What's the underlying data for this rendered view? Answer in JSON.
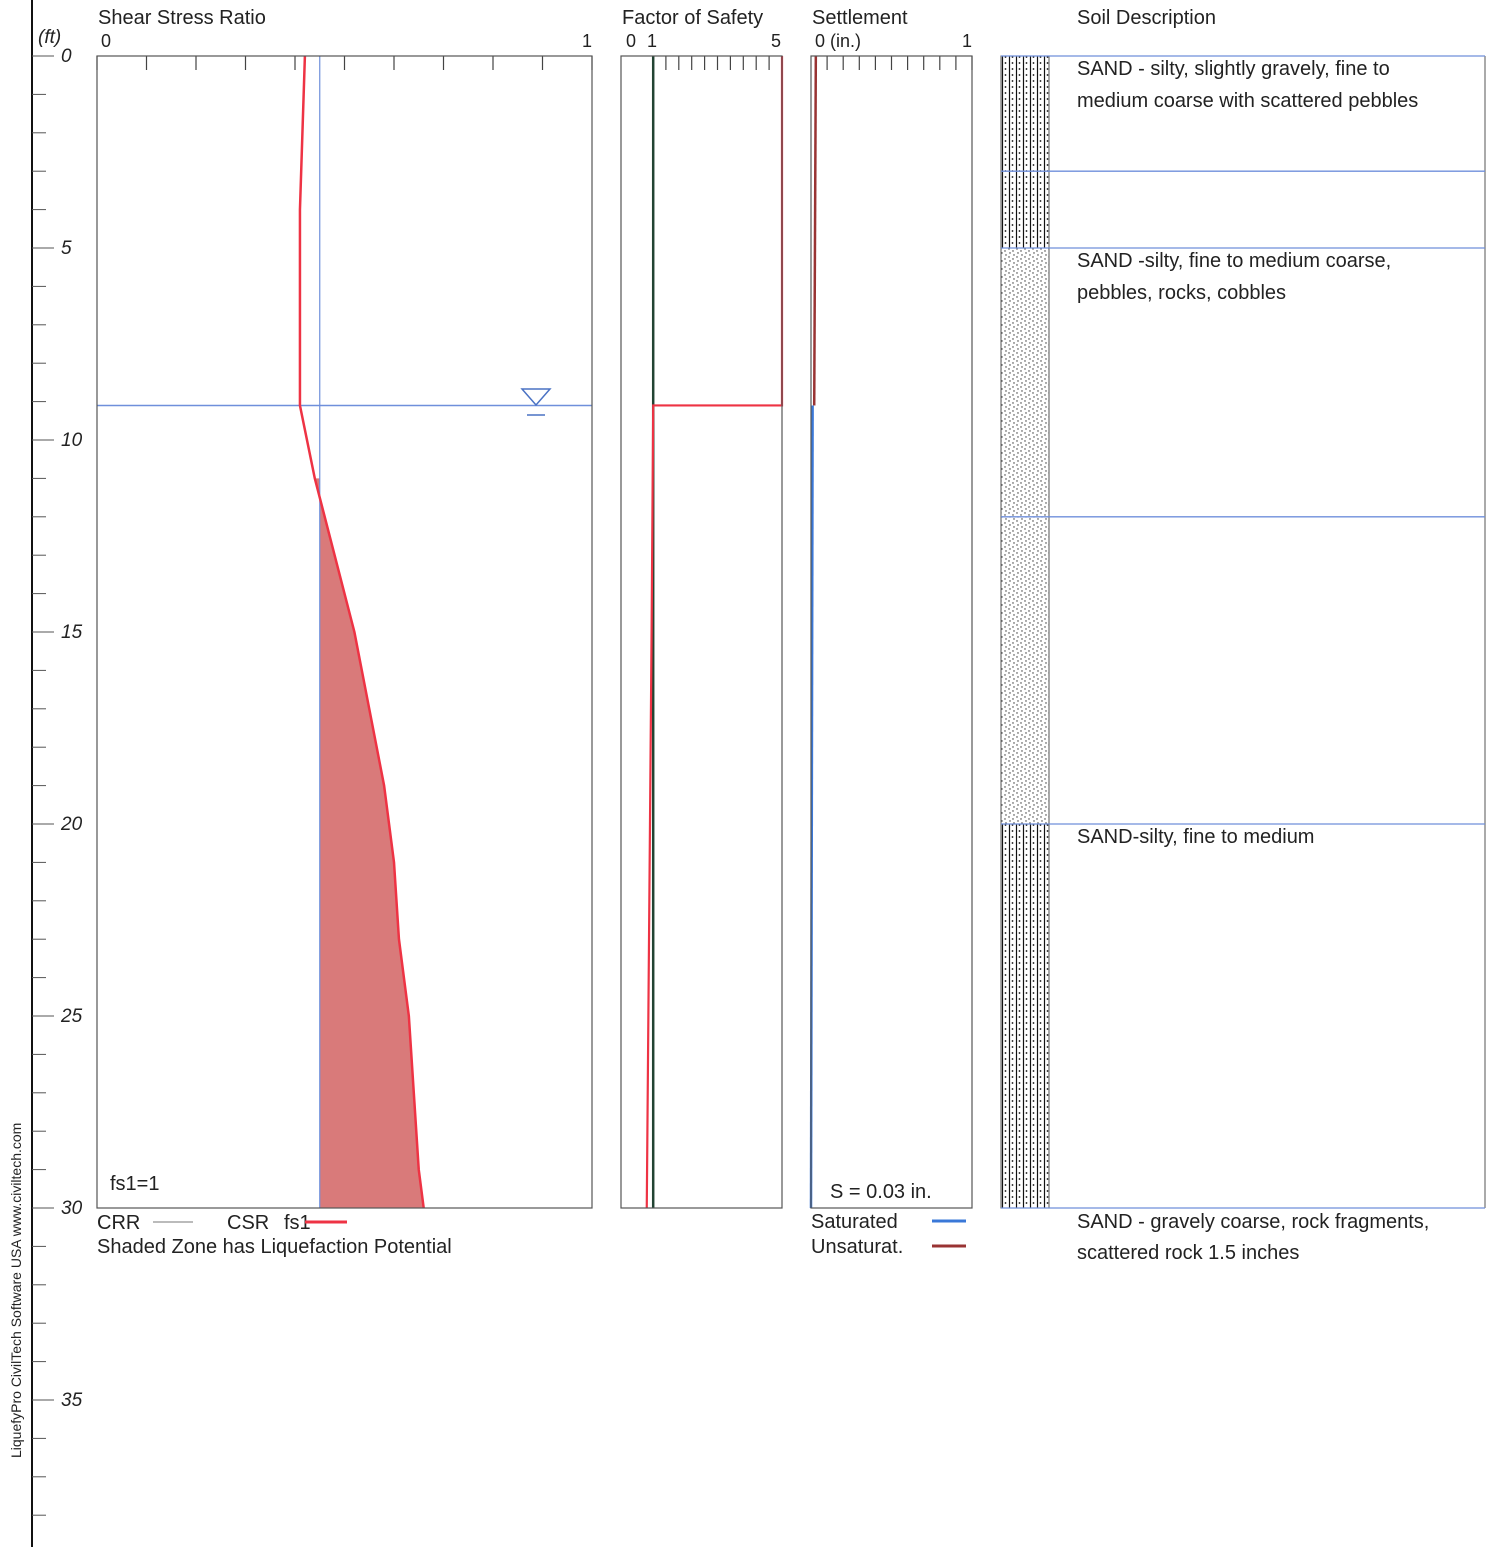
{
  "depth_axis": {
    "unit_label": "(ft)",
    "tick_labels": [
      "0",
      "5",
      "10",
      "15",
      "20",
      "25",
      "30",
      "35"
    ],
    "range": [
      0,
      39
    ],
    "major_step": 5,
    "minor_step": 1
  },
  "side_text": "LiquefyPro CivilTech Software USA www.civiltech.com",
  "colors": {
    "csr": "#ee3344",
    "crr": "#bbbbbb",
    "liquefaction_fill": "#d97a7a",
    "water_line": "#6f8fdb",
    "saturated": "#3a78d8",
    "unsaturated": "#993333",
    "fs1_line": "#224433",
    "layer_line": "#6f8fdb"
  },
  "chart_data": [
    {
      "type": "line",
      "title": "Shear Stress Ratio",
      "x_tick_labels": [
        "0",
        "1"
      ],
      "xlim": [
        0,
        1
      ],
      "ylim": [
        0,
        30
      ],
      "water_table_depth": 9.1,
      "series": [
        {
          "name": "CRR",
          "points": [
            [
              0.45,
              0
            ],
            [
              0.45,
              30
            ]
          ]
        },
        {
          "name": "CSR fs1",
          "points": [
            [
              0.42,
              0
            ],
            [
              0.41,
              4
            ],
            [
              0.41,
              9.1
            ],
            [
              0.44,
              11
            ],
            [
              0.48,
              13
            ],
            [
              0.52,
              15
            ],
            [
              0.55,
              17
            ],
            [
              0.58,
              19
            ],
            [
              0.6,
              21
            ],
            [
              0.61,
              23
            ],
            [
              0.63,
              25
            ],
            [
              0.64,
              27
            ],
            [
              0.65,
              29
            ],
            [
              0.66,
              30
            ]
          ]
        }
      ],
      "shaded_region": {
        "from_depth": 11,
        "to_depth": 30
      },
      "annotation": "fs1=1",
      "legend": {
        "crr": "CRR",
        "csr_prefix": "CSR",
        "csr_series": "fs1"
      },
      "note": "Shaded Zone has Liquefaction Potential"
    },
    {
      "type": "line",
      "title": "Factor of Safety",
      "x_tick_labels": [
        "0",
        "1",
        "5"
      ],
      "xlim": [
        0,
        5
      ],
      "ylim": [
        0,
        30
      ],
      "series": [
        {
          "name": "fs1",
          "points": [
            [
              5,
              0
            ],
            [
              5,
              9.1
            ],
            [
              1.0,
              9.1
            ],
            [
              0.95,
              15
            ],
            [
              0.9,
              20
            ],
            [
              0.85,
              25
            ],
            [
              0.8,
              30
            ]
          ]
        },
        {
          "name": "FS = 1",
          "points": [
            [
              1,
              0
            ],
            [
              1,
              30
            ]
          ]
        }
      ]
    },
    {
      "type": "line",
      "title": "Settlement",
      "x_tick_labels": [
        "0 (in.)",
        "1"
      ],
      "xlim": [
        0,
        1
      ],
      "ylim": [
        0,
        30
      ],
      "series": [
        {
          "name": "Unsaturat.",
          "points": [
            [
              0.03,
              0
            ],
            [
              0.02,
              9.1
            ]
          ]
        },
        {
          "name": "Saturated",
          "points": [
            [
              0.01,
              9.1
            ],
            [
              0.0,
              30
            ]
          ]
        }
      ],
      "annotation": "S = 0.03 in.",
      "legend": [
        "Saturated",
        "Unsaturat."
      ]
    },
    {
      "type": "table",
      "title": "Soil Description",
      "layer_boundaries": [
        0,
        3,
        5,
        12,
        20,
        30
      ],
      "patterns": [
        {
          "from": 0,
          "to": 5,
          "pattern": "dotted-vertical"
        },
        {
          "from": 5,
          "to": 20,
          "pattern": "stipple"
        },
        {
          "from": 20,
          "to": 30,
          "pattern": "dotted-vertical"
        }
      ],
      "layers": [
        {
          "top": 0,
          "lines": [
            "SAND - silty, slightly gravely, fine to",
            "medium coarse with scattered pebbles"
          ]
        },
        {
          "top": 5,
          "lines": [
            "SAND -silty, fine to medium coarse,",
            "pebbles, rocks, cobbles"
          ]
        },
        {
          "top": 20,
          "lines": [
            "SAND-silty, fine to medium"
          ]
        },
        {
          "top": 30,
          "lines": [
            "SAND - gravely coarse, rock fragments,",
            "scattered rock 1.5 inches"
          ]
        }
      ]
    }
  ]
}
